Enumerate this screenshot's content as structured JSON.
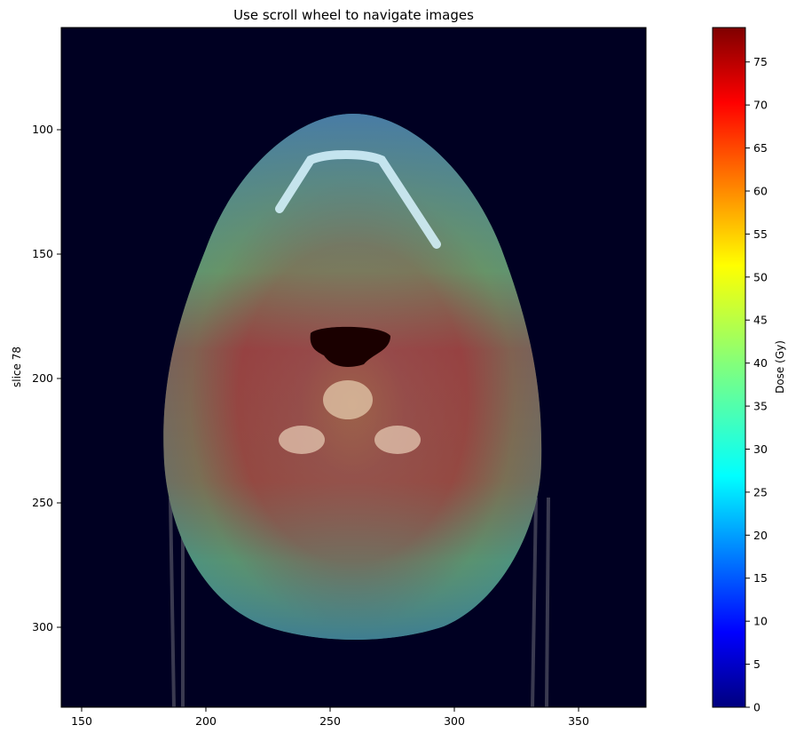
{
  "title": "Use scroll wheel to navigate images",
  "ylabel": "slice 78",
  "image": {
    "x_ticks": [
      "150",
      "200",
      "250",
      "300",
      "350"
    ],
    "y_ticks": [
      "100",
      "150",
      "200",
      "250",
      "300"
    ],
    "x_range": [
      142,
      377
    ],
    "y_range": [
      59,
      333
    ]
  },
  "colorbar": {
    "label": "Dose (Gy)",
    "colormap": "jet",
    "range": [
      0,
      79
    ],
    "ticks": [
      "0",
      "5",
      "10",
      "15",
      "20",
      "25",
      "30",
      "35",
      "40",
      "45",
      "50",
      "55",
      "60",
      "65",
      "70",
      "75"
    ]
  },
  "colors": {
    "background": "#000022",
    "dose_high": "#8b1a1a",
    "dose_low": "#1a3a8a"
  }
}
